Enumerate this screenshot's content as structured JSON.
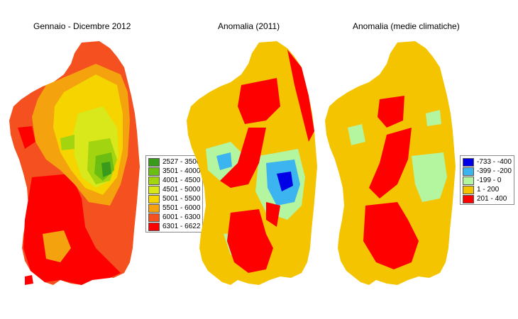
{
  "panels": [
    {
      "title": "Gennaio - Dicembre 2012",
      "base_color": "#f5501f",
      "legend": [
        {
          "label": "2527 - 3500",
          "color": "#3a9a1c"
        },
        {
          "label": "3501 - 4000",
          "color": "#6cbf12"
        },
        {
          "label": "4001 - 4500",
          "color": "#a3d410"
        },
        {
          "label": "4501 - 5000",
          "color": "#d8e81b"
        },
        {
          "label": "5001 - 5500",
          "color": "#f5d400"
        },
        {
          "label": "5501 - 6000",
          "color": "#f5a20f"
        },
        {
          "label": "6001 - 6300",
          "color": "#f5501f"
        },
        {
          "label": "6301 - 6622",
          "color": "#ff0000"
        }
      ]
    },
    {
      "title": "Anomalia (2011)",
      "base_color": "#f5c400",
      "legend": []
    },
    {
      "title": "Anomalia (medie climatiche)",
      "base_color": "#f5c400",
      "legend": [
        {
          "label": "-733 - -400",
          "color": "#0000e6"
        },
        {
          "label": "-399 - -200",
          "color": "#3cb4f0"
        },
        {
          "label": "-199 - 0",
          "color": "#b4f5a0"
        },
        {
          "label": "1 - 200",
          "color": "#f5c400"
        },
        {
          "label": "201 - 400",
          "color": "#ff0000"
        }
      ]
    }
  ]
}
